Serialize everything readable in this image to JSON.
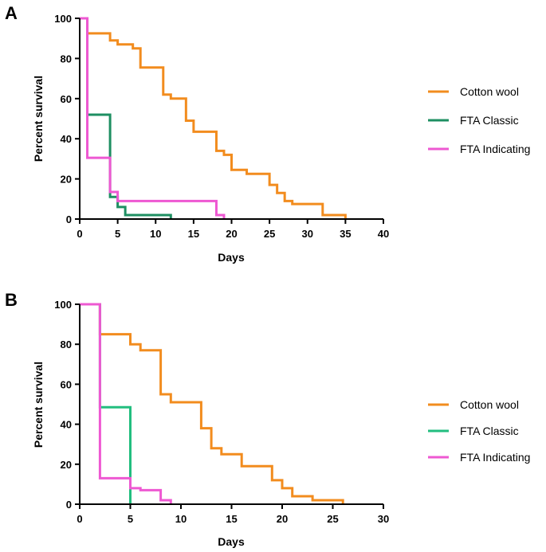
{
  "chart_data": [
    {
      "panel": "A",
      "type": "line",
      "step": true,
      "xlabel": "Days",
      "ylabel": "Percent survival",
      "xlim": [
        0,
        40
      ],
      "ylim": [
        0,
        100
      ],
      "xticks": [
        0,
        5,
        10,
        15,
        20,
        25,
        30,
        35,
        40
      ],
      "yticks": [
        0,
        20,
        40,
        60,
        80,
        100
      ],
      "grid": false,
      "legend_position": "right",
      "series": [
        {
          "name": "Cotton wool",
          "color": "#F28C1E",
          "x": [
            0,
            1,
            4,
            5,
            7,
            8,
            11,
            12,
            14,
            15,
            18,
            19,
            20,
            22,
            25,
            26,
            27,
            28,
            32,
            35
          ],
          "y": [
            100,
            92.5,
            89,
            87,
            85,
            75.5,
            62,
            60,
            49,
            43.5,
            34,
            32,
            24.5,
            22.5,
            17,
            13,
            9,
            7.5,
            2,
            0
          ]
        },
        {
          "name": "FTA Classic",
          "color": "#1E8F62",
          "x": [
            0,
            1,
            4,
            5,
            6,
            12
          ],
          "y": [
            100,
            52,
            11,
            6,
            2,
            0
          ]
        },
        {
          "name": "FTA Indicating",
          "color": "#EE58D2",
          "x": [
            0,
            1,
            4,
            5,
            18,
            19
          ],
          "y": [
            100,
            30.5,
            13.5,
            9,
            2,
            0
          ]
        }
      ]
    },
    {
      "panel": "B",
      "type": "line",
      "step": true,
      "xlabel": "Days",
      "ylabel": "Percent survival",
      "xlim": [
        0,
        30
      ],
      "ylim": [
        0,
        100
      ],
      "xticks": [
        0,
        5,
        10,
        15,
        20,
        25,
        30
      ],
      "yticks": [
        0,
        20,
        40,
        60,
        80,
        100
      ],
      "grid": false,
      "legend_position": "right",
      "series": [
        {
          "name": "Cotton wool",
          "color": "#F28C1E",
          "x": [
            0,
            2,
            5,
            6,
            8,
            9,
            12,
            13,
            14,
            16,
            19,
            20,
            21,
            23,
            26
          ],
          "y": [
            100,
            85,
            80,
            77,
            55,
            51,
            38,
            28,
            25,
            19,
            12,
            8,
            4,
            2,
            0
          ]
        },
        {
          "name": "FTA Classic",
          "color": "#22BE7F",
          "x": [
            0,
            2,
            5
          ],
          "y": [
            100,
            48.5,
            0
          ]
        },
        {
          "name": "FTA Indicating",
          "color": "#EE58D2",
          "x": [
            0,
            2,
            5,
            6,
            8,
            9
          ],
          "y": [
            100,
            13,
            8,
            7,
            2,
            0
          ]
        }
      ]
    }
  ]
}
